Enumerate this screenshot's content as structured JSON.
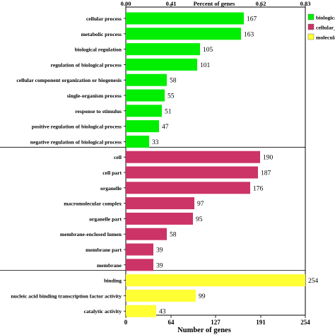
{
  "chart_data": {
    "type": "bar",
    "orientation": "horizontal",
    "x_bottom_label": "Number of genes",
    "x_top_label": "Percent of genes",
    "x_bottom_ticks": [
      "0",
      "64",
      "127",
      "191",
      "254"
    ],
    "x_top_ticks": [
      "0.00",
      "0.41",
      "0.62",
      "0.83"
    ],
    "xlim": [
      0,
      254
    ],
    "grid": false,
    "legend_position": "top-right",
    "groups": [
      {
        "name": "biological_",
        "color": "#00ee00",
        "categories": [
          "cellular process",
          "metabolic process",
          "biological regulation",
          "regulation of biological process",
          "cellular component organization or biogenesis",
          "single-organism process",
          "response to stimulus",
          "positive regulation of biological process",
          "negative regulation of biological process"
        ],
        "values": [
          167,
          163,
          105,
          101,
          58,
          55,
          51,
          47,
          33
        ]
      },
      {
        "name": "cellular_co",
        "color": "#cc3366",
        "categories": [
          "cell",
          "cell part",
          "organelle",
          "macromolecular complex",
          "organelle part",
          "membrane-enclosed lumen",
          "membrane part",
          "membrane"
        ],
        "values": [
          190,
          187,
          176,
          97,
          95,
          58,
          39,
          39
        ]
      },
      {
        "name": "molecular_",
        "color": "#ffff33",
        "categories": [
          "binding",
          "nucleic acid binding transcription factor activity",
          "catalytic activity"
        ],
        "values": [
          254,
          99,
          43
        ]
      }
    ]
  }
}
